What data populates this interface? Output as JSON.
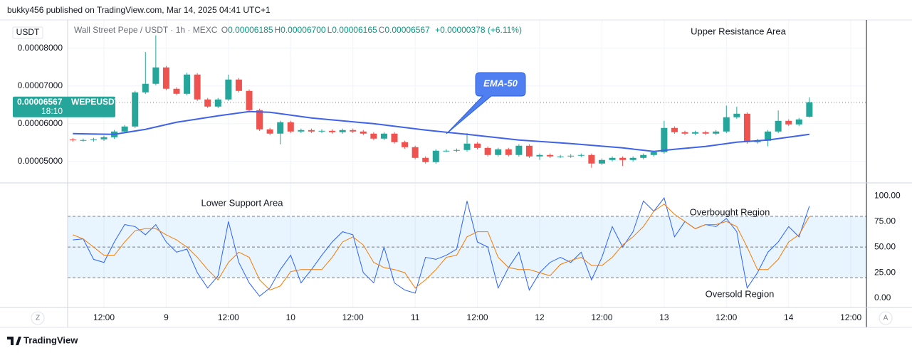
{
  "header": {
    "published": "bukky456 published on TradingView.com, Mar 14, 2025 04:41 UTC+1"
  },
  "footer": {
    "brand": "TradingView"
  },
  "chart_data": [
    {
      "type": "candlestick",
      "currency": "USDT",
      "title": "Wall Street Pepe / USDT · 1h · MEXC",
      "ohlc": [
        {
          "key": "O",
          "value": "0.00006185"
        },
        {
          "key": "H",
          "value": "0.00006700"
        },
        {
          "key": "L",
          "value": "0.00006165"
        },
        {
          "key": "C",
          "value": "0.00006567"
        }
      ],
      "change": "+0.00000378 (+6.11%)",
      "last_price": {
        "symbol": "WEPEUSDT",
        "countdown": "18:10"
      },
      "up_color": "#26a69a",
      "down_color": "#ef5350",
      "grid": true,
      "x": [
        -6,
        -4,
        -2,
        0,
        2,
        4,
        6,
        8,
        10,
        12,
        14,
        16,
        18,
        20,
        22,
        24,
        26,
        28,
        30,
        32,
        34,
        36,
        38,
        40,
        42,
        44,
        46,
        48,
        50,
        52,
        54,
        56,
        58,
        60,
        62,
        64,
        66,
        68,
        70,
        72,
        74,
        76,
        78,
        80,
        82,
        84,
        86,
        88,
        90,
        92,
        94,
        96,
        98,
        100,
        102,
        104,
        106,
        108,
        110,
        112,
        114,
        116,
        118,
        120,
        122,
        124,
        126,
        128,
        130,
        132,
        134,
        136
      ],
      "open": [
        5.58e-05,
        5.566e-05,
        5.566e-05,
        5.585e-05,
        5.641e-05,
        5.792e-05,
        5.925e-05,
        6.83e-05,
        7.057e-05,
        7.491e-05,
        6.925e-05,
        6.792e-05,
        7.302e-05,
        6.642e-05,
        6.453e-05,
        6.642e-05,
        7.17e-05,
        6.868e-05,
        6.358e-05,
        5.849e-05,
        5.736e-05,
        6.038e-05,
        5.792e-05,
        5.83e-05,
        5.792e-05,
        5.811e-05,
        5.774e-05,
        5.83e-05,
        5.792e-05,
        5.736e-05,
        5.604e-05,
        5.736e-05,
        5.509e-05,
        5.377e-05,
        5.094e-05,
        4.981e-05,
        5.283e-05,
        5.283e-05,
        5.302e-05,
        5.472e-05,
        5.358e-05,
        5.17e-05,
        5.321e-05,
        5.17e-05,
        5.415e-05,
        5.132e-05,
        5.17e-05,
        5.132e-05,
        5.132e-05,
        5.151e-05,
        5.17e-05,
        4.943e-05,
        5.038e-05,
        5.094e-05,
        5.038e-05,
        5.094e-05,
        5.17e-05,
        5.245e-05,
        5.887e-05,
        5.774e-05,
        5.736e-05,
        5.774e-05,
        5.736e-05,
        5.792e-05,
        6.17e-05,
        6.264e-05,
        5.509e-05,
        5.547e-05,
        5.792e-05,
        6.075e-05,
        5.981e-05,
        6.185e-05
      ],
      "high": [
        5.62e-05,
        5.606e-05,
        5.625e-05,
        5.681e-05,
        5.832e-05,
        5.965e-05,
        6.87e-05,
        7.9e-05,
        8.34e-05,
        7.531e-05,
        6.965e-05,
        7.35e-05,
        7.342e-05,
        6.682e-05,
        6.682e-05,
        7.3e-05,
        7.21e-05,
        6.908e-05,
        6.398e-05,
        5.889e-05,
        6.078e-05,
        6.078e-05,
        5.87e-05,
        5.87e-05,
        5.851e-05,
        5.851e-05,
        5.87e-05,
        5.87e-05,
        5.832e-05,
        5.776e-05,
        5.776e-05,
        5.776e-05,
        5.549e-05,
        5.417e-05,
        5.134e-05,
        5.323e-05,
        5.323e-05,
        5.342e-05,
        5.75e-05,
        5.512e-05,
        5.398e-05,
        5.361e-05,
        5.361e-05,
        5.455e-05,
        5.455e-05,
        5.21e-05,
        5.21e-05,
        5.172e-05,
        5.191e-05,
        5.21e-05,
        5.21e-05,
        5.078e-05,
        5.134e-05,
        5.134e-05,
        5.134e-05,
        5.21e-05,
        5.285e-05,
        6.075e-05,
        5.927e-05,
        5.814e-05,
        5.814e-05,
        5.814e-05,
        5.832e-05,
        6.48e-05,
        6.45e-05,
        6.304e-05,
        5.6e-05,
        5.832e-05,
        6.35e-05,
        6.115e-05,
        6.153e-05,
        6.7e-05
      ],
      "low": [
        5.526e-05,
        5.526e-05,
        5.526e-05,
        5.545e-05,
        5.601e-05,
        5.752e-05,
        5.885e-05,
        6.79e-05,
        7.017e-05,
        6.885e-05,
        6.752e-05,
        6.752e-05,
        6.602e-05,
        6.413e-05,
        6.413e-05,
        6.602e-05,
        6.828e-05,
        6.318e-05,
        5.809e-05,
        5.696e-05,
        5.45e-05,
        5.752e-05,
        5.752e-05,
        5.752e-05,
        5.752e-05,
        5.734e-05,
        5.734e-05,
        5.752e-05,
        5.696e-05,
        5.564e-05,
        5.564e-05,
        5.469e-05,
        5.337e-05,
        5.054e-05,
        4.941e-05,
        4.941e-05,
        5.243e-05,
        5.243e-05,
        5.262e-05,
        5.318e-05,
        5.13e-05,
        5.13e-05,
        5.13e-05,
        5.13e-05,
        5.092e-05,
        5.04e-05,
        5.092e-05,
        5.092e-05,
        5.092e-05,
        5.111e-05,
        4.83e-05,
        4.903e-05,
        4.998e-05,
        4.88e-05,
        4.998e-05,
        5.054e-05,
        5.13e-05,
        5.205e-05,
        5.734e-05,
        5.696e-05,
        5.696e-05,
        5.696e-05,
        5.696e-05,
        5.752e-05,
        6.13e-05,
        5.469e-05,
        5.469e-05,
        5.4e-05,
        5.752e-05,
        5.941e-05,
        5.941e-05,
        6.165e-05
      ],
      "close": [
        5.566e-05,
        5.566e-05,
        5.585e-05,
        5.641e-05,
        5.792e-05,
        5.925e-05,
        6.83e-05,
        7.057e-05,
        7.491e-05,
        6.925e-05,
        6.792e-05,
        7.302e-05,
        6.642e-05,
        6.453e-05,
        6.642e-05,
        7.17e-05,
        6.868e-05,
        6.358e-05,
        5.849e-05,
        5.736e-05,
        6.038e-05,
        5.792e-05,
        5.83e-05,
        5.792e-05,
        5.811e-05,
        5.774e-05,
        5.83e-05,
        5.792e-05,
        5.736e-05,
        5.604e-05,
        5.736e-05,
        5.509e-05,
        5.377e-05,
        5.094e-05,
        4.981e-05,
        5.283e-05,
        5.283e-05,
        5.302e-05,
        5.472e-05,
        5.358e-05,
        5.17e-05,
        5.321e-05,
        5.17e-05,
        5.415e-05,
        5.132e-05,
        5.17e-05,
        5.132e-05,
        5.132e-05,
        5.151e-05,
        5.17e-05,
        4.943e-05,
        5.038e-05,
        5.094e-05,
        5.038e-05,
        5.094e-05,
        5.17e-05,
        5.245e-05,
        5.887e-05,
        5.774e-05,
        5.736e-05,
        5.774e-05,
        5.736e-05,
        5.792e-05,
        6.17e-05,
        6.264e-05,
        5.509e-05,
        5.547e-05,
        5.792e-05,
        6.075e-05,
        5.981e-05,
        6.113e-05,
        6.567e-05
      ],
      "ema": {
        "name": "EMA-50",
        "color": "#3f63e8",
        "x": [
          -6,
          2,
          8,
          14,
          22,
          28,
          32,
          40,
          52,
          62,
          70,
          80,
          90,
          100,
          106,
          110,
          116,
          122,
          128,
          136
        ],
        "values": [
          5.736e-05,
          5.717e-05,
          5.849e-05,
          6.038e-05,
          6.208e-05,
          6.321e-05,
          6.302e-05,
          6.151e-05,
          6e-05,
          5.83e-05,
          5.717e-05,
          5.566e-05,
          5.472e-05,
          5.358e-05,
          5.264e-05,
          5.321e-05,
          5.396e-05,
          5.509e-05,
          5.566e-05,
          5.717e-05
        ]
      },
      "ylim": [
        4.43e-05,
        8.75e-05
      ],
      "yticks": [
        {
          "value": 8e-05,
          "label": "0.00008000"
        },
        {
          "value": 7e-05,
          "label": "0.00007000"
        },
        {
          "value": 6e-05,
          "label": "0.00006000"
        },
        {
          "value": 5e-05,
          "label": "0.00005000"
        }
      ],
      "xlim": [
        -7,
        147
      ],
      "xticks": [
        {
          "value": 0,
          "label": "12:00"
        },
        {
          "value": 12,
          "label": "9"
        },
        {
          "value": 24,
          "label": "12:00"
        },
        {
          "value": 36,
          "label": "10"
        },
        {
          "value": 48,
          "label": "12:00"
        },
        {
          "value": 60,
          "label": "11"
        },
        {
          "value": 72,
          "label": "12:00"
        },
        {
          "value": 84,
          "label": "12"
        },
        {
          "value": 96,
          "label": "12:00"
        },
        {
          "value": 108,
          "label": "13"
        },
        {
          "value": 120,
          "label": "12:00"
        },
        {
          "value": 132,
          "label": "14"
        },
        {
          "value": 144,
          "label": "12:00"
        }
      ],
      "annotations": [
        {
          "text": "Upper Resistance Area"
        }
      ]
    },
    {
      "type": "stochastic",
      "series": [
        {
          "color": "#2962ff",
          "values": [
            57,
            58,
            38,
            35,
            55,
            72,
            70,
            62,
            72,
            55,
            45,
            48,
            25,
            10,
            22,
            75,
            35,
            15,
            2,
            10,
            28,
            42,
            15,
            28,
            42,
            55,
            65,
            62,
            25,
            15,
            50,
            15,
            8,
            5,
            40,
            38,
            42,
            48,
            95,
            55,
            50,
            10,
            30,
            45,
            8,
            25,
            35,
            40,
            35,
            45,
            18,
            40,
            70,
            50,
            65,
            95,
            85,
            98,
            60,
            75,
            68,
            72,
            70,
            78,
            65,
            10,
            25,
            45,
            55,
            70,
            60,
            90
          ]
        },
        {
          "color": "#f57c00",
          "values": [
            62,
            58,
            50,
            42,
            42,
            55,
            66,
            68,
            68,
            62,
            57,
            50,
            40,
            28,
            18,
            35,
            45,
            40,
            18,
            8,
            12,
            26,
            28,
            28,
            28,
            40,
            55,
            60,
            52,
            35,
            30,
            28,
            25,
            10,
            18,
            28,
            40,
            42,
            60,
            65,
            65,
            40,
            30,
            28,
            28,
            25,
            22,
            33,
            37,
            40,
            32,
            32,
            40,
            52,
            60,
            70,
            85,
            92,
            82,
            75,
            68,
            72,
            72,
            75,
            70,
            50,
            28,
            28,
            38,
            55,
            62,
            80
          ]
        }
      ],
      "band": [
        20,
        80
      ],
      "levels": [
        80,
        50,
        20
      ],
      "ylim": [
        -9,
        112
      ],
      "yticks": [
        {
          "value": 100,
          "label": "100.00"
        },
        {
          "value": 75,
          "label": "75.00"
        },
        {
          "value": 50,
          "label": "50.00"
        },
        {
          "value": 25,
          "label": "25.00"
        },
        {
          "value": 0,
          "label": "0.00"
        }
      ],
      "annotations": [
        {
          "text": "Lower Support Area"
        },
        {
          "text": "Overbought Region"
        },
        {
          "text": "Oversold Region"
        }
      ]
    }
  ]
}
